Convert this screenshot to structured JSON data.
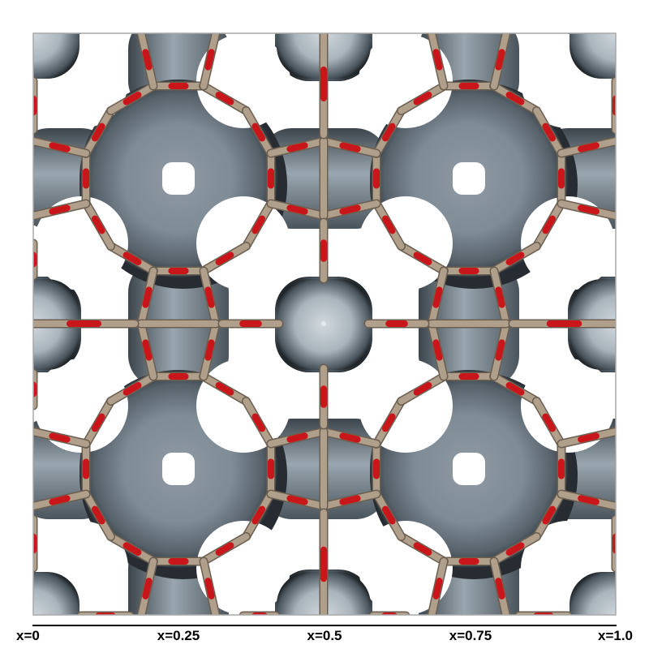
{
  "figure": {
    "description_free": true,
    "colors": {
      "isosurface_light": "#c4ccd3",
      "isosurface_mid": "#8d99a3",
      "isosurface_dark": "#2b3238",
      "bond_tan": "#b09f8a",
      "oxygen_red": "#c8161b",
      "frame": "#a8a8a8",
      "background": "#ffffff"
    },
    "axis": {
      "ticks": [
        {
          "label": "x=0",
          "value": 0
        },
        {
          "label": "x=0.25",
          "value": 0.25
        },
        {
          "label": "x=0.5",
          "value": 0.5
        },
        {
          "label": "x=0.75",
          "value": 0.75
        },
        {
          "label": "x=1.0",
          "value": 1.0
        }
      ]
    }
  }
}
